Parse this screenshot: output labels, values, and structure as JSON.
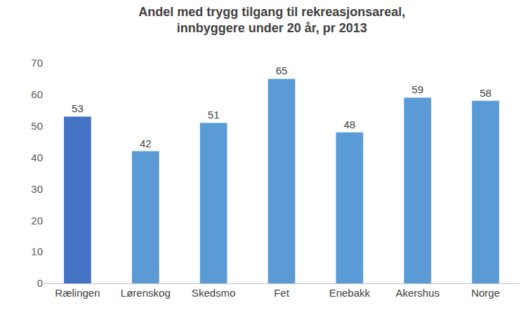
{
  "chart_data": {
    "type": "bar",
    "title": "Andel med trygg tilgang til rekreasjonsareal,\ninnbyggere under 20 år, pr 2013",
    "categories": [
      "Rælingen",
      "Lørenskog",
      "Skedsmo",
      "Fet",
      "Enebakk",
      "Akershus",
      "Norge"
    ],
    "values": [
      53,
      42,
      51,
      65,
      48,
      59,
      58
    ],
    "colors": [
      "#4472c4",
      "#5b9bd5",
      "#5b9bd5",
      "#5b9bd5",
      "#5b9bd5",
      "#5b9bd5",
      "#5b9bd5"
    ],
    "ylim": [
      0,
      70
    ],
    "yticks": [
      0,
      10,
      20,
      30,
      40,
      50,
      60,
      70
    ],
    "grid": false,
    "data_labels": true
  }
}
